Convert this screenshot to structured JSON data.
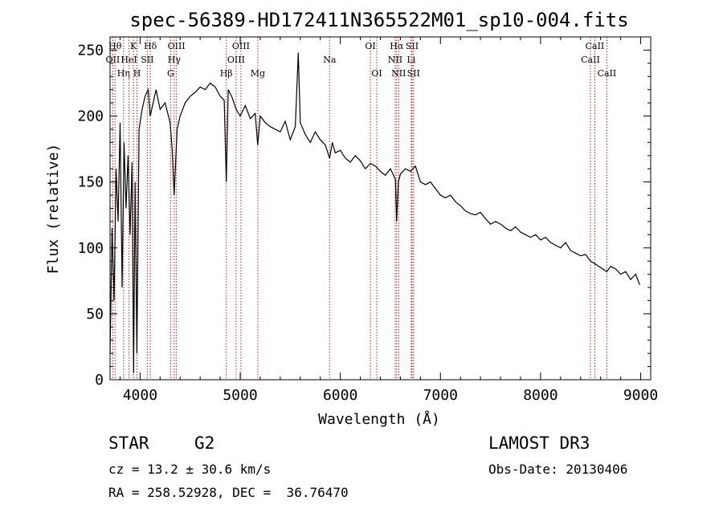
{
  "chart_data": {
    "type": "line",
    "title": "spec-56389-HD172411N365522M01_sp10-004.fits",
    "xlabel": "Wavelength (Å)",
    "ylabel": "Flux (relative)",
    "xlim": [
      3700,
      9100
    ],
    "ylim": [
      0,
      260
    ],
    "xticks": [
      4000,
      5000,
      6000,
      7000,
      8000,
      9000
    ],
    "yticks": [
      0,
      50,
      100,
      150,
      200,
      250
    ],
    "grid": false,
    "line_color": "#000000",
    "marker_color": "#b22222",
    "x": [
      3700,
      3720,
      3740,
      3760,
      3780,
      3800,
      3820,
      3840,
      3860,
      3880,
      3900,
      3920,
      3935,
      3950,
      3968,
      3990,
      4020,
      4050,
      4080,
      4101,
      4130,
      4160,
      4200,
      4250,
      4300,
      4320,
      4340,
      4370,
      4400,
      4450,
      4500,
      4550,
      4600,
      4650,
      4700,
      4750,
      4800,
      4840,
      4861,
      4880,
      4920,
      4960,
      5000,
      5050,
      5100,
      5150,
      5175,
      5200,
      5250,
      5300,
      5350,
      5400,
      5450,
      5500,
      5550,
      5580,
      5600,
      5650,
      5700,
      5750,
      5800,
      5850,
      5893,
      5920,
      5950,
      6000,
      6050,
      6100,
      6150,
      6200,
      6250,
      6300,
      6350,
      6400,
      6450,
      6500,
      6550,
      6563,
      6580,
      6600,
      6650,
      6700,
      6750,
      6800,
      6850,
      6900,
      6950,
      7000,
      7050,
      7100,
      7150,
      7200,
      7250,
      7300,
      7350,
      7400,
      7450,
      7500,
      7550,
      7600,
      7650,
      7700,
      7750,
      7800,
      7850,
      7900,
      7950,
      8000,
      8050,
      8100,
      8150,
      8200,
      8250,
      8300,
      8350,
      8400,
      8450,
      8498,
      8542,
      8600,
      8662,
      8700,
      8750,
      8800,
      8850,
      8900,
      8950,
      8990
    ],
    "y": [
      20,
      115,
      60,
      160,
      120,
      195,
      70,
      180,
      130,
      170,
      110,
      165,
      5,
      150,
      20,
      190,
      205,
      215,
      220,
      200,
      210,
      220,
      205,
      210,
      195,
      175,
      140,
      190,
      200,
      210,
      215,
      218,
      222,
      220,
      225,
      222,
      215,
      212,
      150,
      220,
      214,
      205,
      200,
      208,
      198,
      202,
      178,
      200,
      195,
      192,
      190,
      188,
      196,
      182,
      192,
      248,
      195,
      186,
      180,
      188,
      182,
      178,
      168,
      180,
      172,
      174,
      168,
      165,
      170,
      166,
      160,
      164,
      162,
      158,
      155,
      160,
      152,
      120,
      150,
      156,
      160,
      158,
      162,
      150,
      148,
      150,
      145,
      140,
      138,
      140,
      135,
      132,
      128,
      126,
      125,
      127,
      122,
      118,
      120,
      118,
      115,
      113,
      116,
      112,
      110,
      108,
      110,
      106,
      108,
      104,
      102,
      100,
      104,
      98,
      96,
      94,
      95,
      90,
      88,
      85,
      82,
      86,
      84,
      80,
      82,
      76,
      80,
      72
    ],
    "lines": [
      {
        "label": "OII",
        "x": 3727,
        "row": 2
      },
      {
        "label": "Hθ",
        "x": 3750,
        "row": 1
      },
      {
        "label": "Hη",
        "x": 3835,
        "row": 3
      },
      {
        "label": "HeI",
        "x": 3889,
        "row": 2
      },
      {
        "label": "K",
        "x": 3934,
        "row": 1
      },
      {
        "label": "H",
        "x": 3969,
        "row": 3
      },
      {
        "label": "SII",
        "x": 4072,
        "row": 2
      },
      {
        "label": "Hδ",
        "x": 4102,
        "row": 1
      },
      {
        "label": "G",
        "x": 4305,
        "row": 3
      },
      {
        "label": "Hγ",
        "x": 4341,
        "row": 2
      },
      {
        "label": "OIII",
        "x": 4363,
        "row": 1
      },
      {
        "label": "Hβ",
        "x": 4861,
        "row": 3
      },
      {
        "label": "OIII",
        "x": 4959,
        "row": 2
      },
      {
        "label": "OIII",
        "x": 5007,
        "row": 1
      },
      {
        "label": "Mg",
        "x": 5176,
        "row": 3
      },
      {
        "label": "Na",
        "x": 5893,
        "row": 2
      },
      {
        "label": "OI",
        "x": 6300,
        "row": 1
      },
      {
        "label": "OI",
        "x": 6364,
        "row": 3
      },
      {
        "label": "NII",
        "x": 6548,
        "row": 2
      },
      {
        "label": "Hα",
        "x": 6563,
        "row": 1
      },
      {
        "label": "NII",
        "x": 6583,
        "row": 3
      },
      {
        "label": "Li",
        "x": 6708,
        "row": 2
      },
      {
        "label": "SII",
        "x": 6717,
        "row": 1
      },
      {
        "label": "SII",
        "x": 6731,
        "row": 3
      },
      {
        "label": "CaII",
        "x": 8498,
        "row": 2
      },
      {
        "label": "CaII",
        "x": 8542,
        "row": 1
      },
      {
        "label": "CaII",
        "x": 8662,
        "row": 3
      }
    ]
  },
  "info": {
    "object_class": "STAR",
    "subclass": "G2",
    "cz": "cz = 13.2 ± 30.6 km/s",
    "radec": "RA = 258.52928, DEC =  36.76470",
    "survey": "LAMOST DR3",
    "obs_date": "Obs-Date: 20130406"
  }
}
